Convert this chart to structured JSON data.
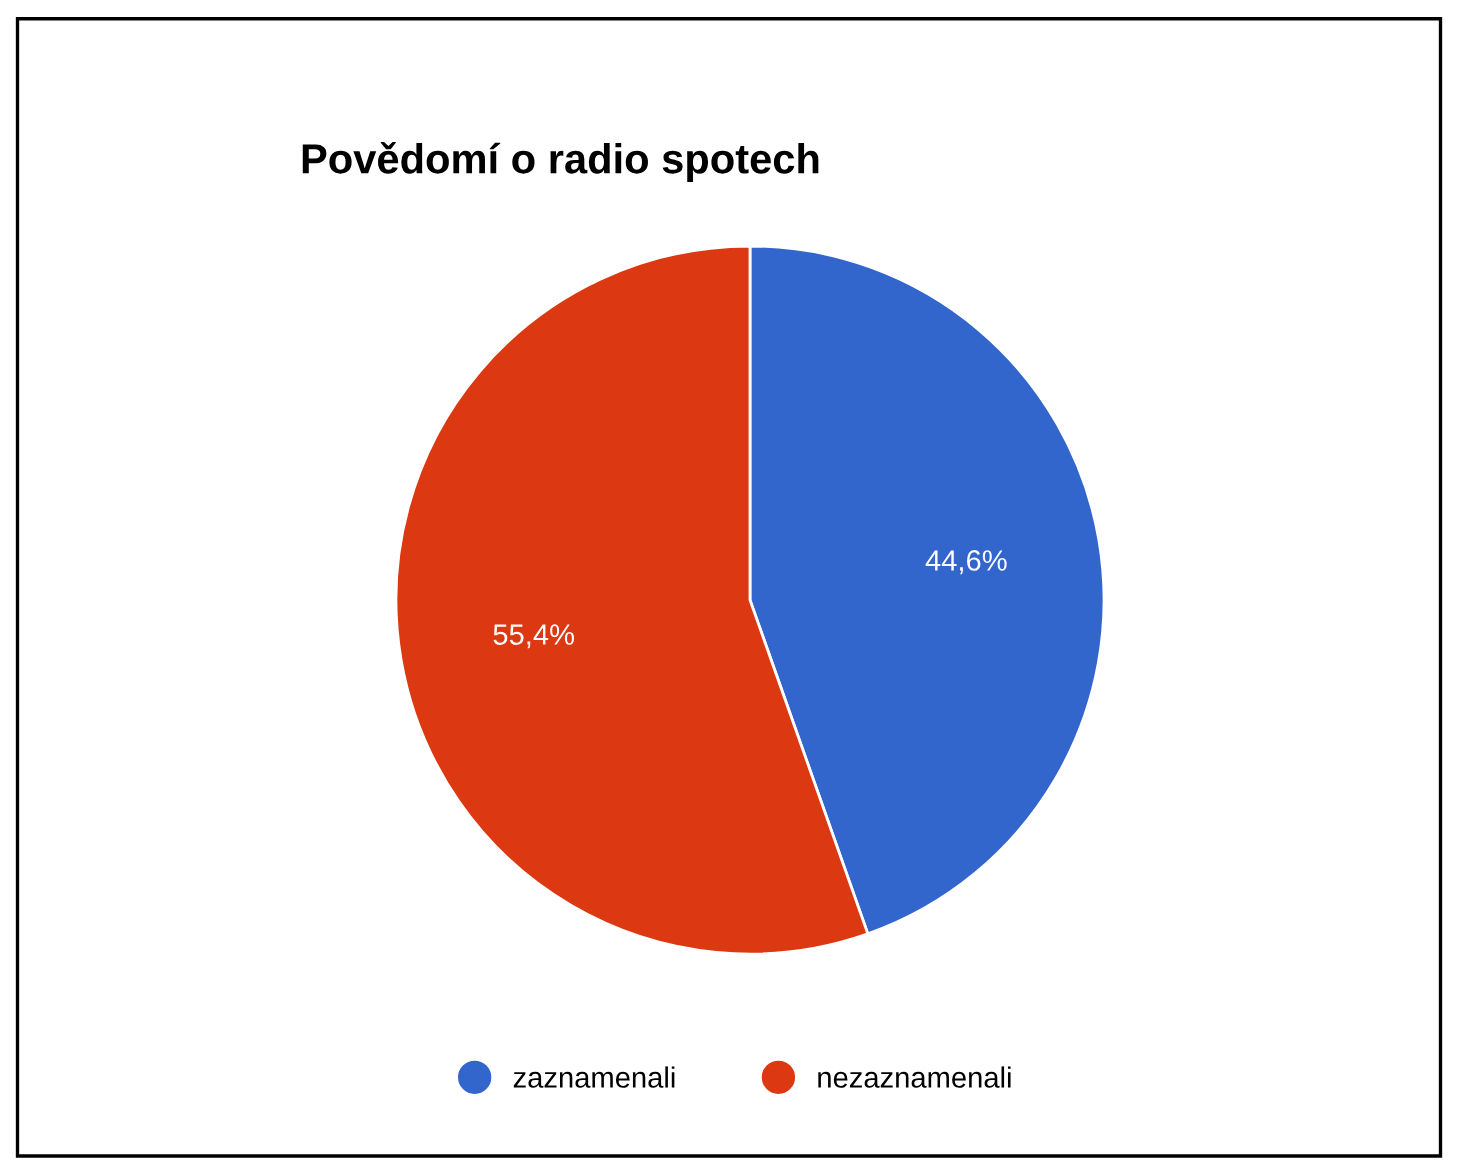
{
  "chart_data": {
    "type": "pie",
    "title": "Povědomí o radio spotech",
    "categories": [
      "zaznamenali",
      "nezaznamenali"
    ],
    "values": [
      44.6,
      55.4
    ],
    "value_labels": [
      "44,6%",
      "55,4%"
    ],
    "colors": [
      "#3366cc",
      "#dc3912"
    ],
    "legend": "bottom"
  }
}
